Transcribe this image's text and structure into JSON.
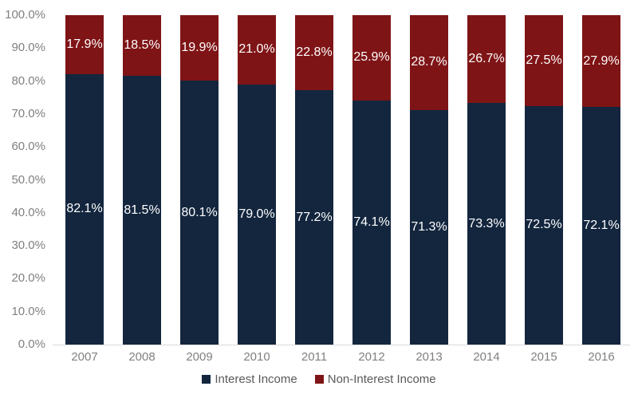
{
  "chart_data": {
    "type": "bar",
    "variant": "stacked-100-percent",
    "title": "",
    "xlabel": "",
    "ylabel": "",
    "categories": [
      "2007",
      "2008",
      "2009",
      "2010",
      "2011",
      "2012",
      "2013",
      "2014",
      "2015",
      "2016"
    ],
    "series": [
      {
        "name": "Interest Income",
        "color": "#13263e",
        "values": [
          82.1,
          81.5,
          80.1,
          79.0,
          77.2,
          74.1,
          71.3,
          73.3,
          72.5,
          72.1
        ]
      },
      {
        "name": "Non-Interest Income",
        "color": "#7f1416",
        "values": [
          17.9,
          18.5,
          19.9,
          21.0,
          22.8,
          25.9,
          28.7,
          26.7,
          27.5,
          27.9
        ]
      }
    ],
    "data_label_format": "0.0%",
    "ylim": [
      0,
      100
    ],
    "yticks": [
      "0.0%",
      "10.0%",
      "20.0%",
      "30.0%",
      "40.0%",
      "50.0%",
      "60.0%",
      "70.0%",
      "80.0%",
      "90.0%",
      "100.0%"
    ],
    "grid": false,
    "legend_position": "bottom"
  },
  "colors": {
    "interest_income": "#13263e",
    "non_interest_income": "#7f1416",
    "bar_label_text": "#ffffff",
    "axis_text": "#808080",
    "legend_text": "#595959",
    "axis_line": "#d9d9d9",
    "background": "#ffffff"
  }
}
